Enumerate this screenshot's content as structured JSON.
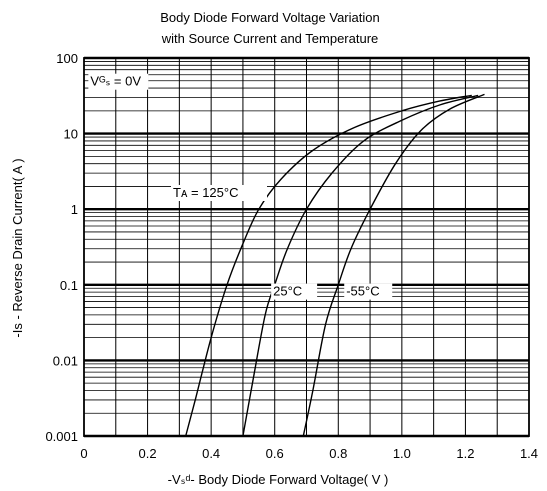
{
  "chart_data": {
    "type": "line",
    "title": [
      "Body Diode Forward Voltage Variation",
      "with Source Current and Temperature"
    ],
    "xlabel": "-Vₛᵈ- Body Diode Forward Voltage( V )",
    "ylabel": "-Is - Reverse Drain Current( A )",
    "xlim": [
      0,
      1.4
    ],
    "ylim": [
      0.001,
      100
    ],
    "yscale": "log",
    "grid": true,
    "x_ticks": [
      "0",
      "0.2",
      "0.4",
      "0.6",
      "0.8",
      "1.0",
      "1.2",
      "1.4"
    ],
    "x_tick_values": [
      0,
      0.2,
      0.4,
      0.6,
      0.8,
      1.0,
      1.2,
      1.4
    ],
    "y_ticks": [
      "0.001",
      "0.01",
      "0.1",
      "1",
      "10",
      "100"
    ],
    "y_tick_values": [
      0.001,
      0.01,
      0.1,
      1,
      10,
      100
    ],
    "condition_label": "Vᴳₛ = 0V",
    "series": [
      {
        "name": "Tᴀ = 125°C",
        "x": [
          0.32,
          0.35,
          0.4,
          0.45,
          0.5,
          0.55,
          0.62,
          0.72,
          0.85,
          1.0,
          1.12,
          1.22
        ],
        "y": [
          0.001,
          0.003,
          0.02,
          0.1,
          0.35,
          1,
          2.5,
          6,
          12,
          20,
          27,
          32
        ]
      },
      {
        "name": "25°C",
        "x": [
          0.5,
          0.53,
          0.57,
          0.6,
          0.64,
          0.7,
          0.78,
          0.88,
          1.0,
          1.12,
          1.24
        ],
        "y": [
          0.001,
          0.005,
          0.04,
          0.1,
          0.3,
          1,
          3,
          8,
          15,
          24,
          32
        ]
      },
      {
        "name": "-55°C",
        "x": [
          0.69,
          0.72,
          0.76,
          0.8,
          0.84,
          0.9,
          0.98,
          1.06,
          1.15,
          1.26
        ],
        "y": [
          0.001,
          0.004,
          0.03,
          0.1,
          0.3,
          1,
          4,
          11,
          21,
          33
        ]
      }
    ]
  }
}
